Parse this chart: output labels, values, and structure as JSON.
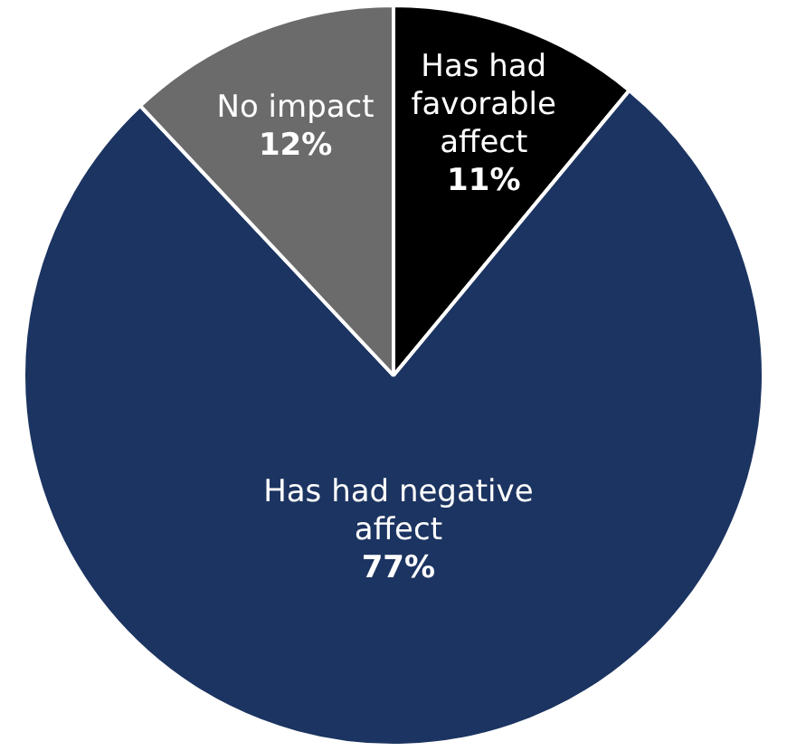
{
  "chart_data": {
    "type": "pie",
    "categories": [
      "Has had favorable affect",
      "Has had negative affect",
      "No impact"
    ],
    "values": [
      11,
      77,
      12
    ],
    "value_labels": [
      "11%",
      "77%",
      "12%"
    ],
    "colors": [
      "#000000",
      "#1c3461",
      "#6b6b6b"
    ],
    "legend": false
  }
}
